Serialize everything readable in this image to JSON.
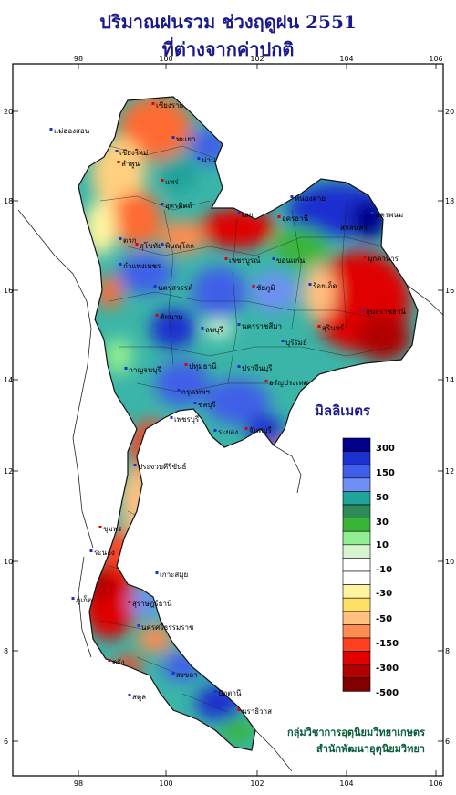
{
  "title": {
    "line1": "ปริมาณฝนรวม ช่วงฤดูฝน 2551",
    "line2": "ที่ต่างจากค่าปกติ"
  },
  "axes": {
    "lon_ticks": [
      "98",
      "100",
      "102",
      "104",
      "106"
    ],
    "lat_ticks": [
      "20",
      "18",
      "16",
      "14",
      "12",
      "10",
      "8",
      "6"
    ]
  },
  "legend": {
    "title": "มิลลิเมตร",
    "colors": [
      "#00008b",
      "#1c2fcf",
      "#3f5fe8",
      "#6f8ff5",
      "#1fa39a",
      "#2e8b57",
      "#3ab53a",
      "#90ee90",
      "#d8f5d0",
      "#ffffff",
      "#ffffff",
      "#fff5a0",
      "#ffe066",
      "#ffc080",
      "#ff8c50",
      "#ff4020",
      "#e00000",
      "#b00000",
      "#800000"
    ],
    "labels": [
      "300",
      "150",
      "50",
      "30",
      "10",
      "-10",
      "-30",
      "-50",
      "-150",
      "-300",
      "-500"
    ]
  },
  "places": [
    {
      "name": "เชียงราย"
    },
    {
      "name": "เชียงใหม่"
    },
    {
      "name": "แม่ฮ่องสอน"
    },
    {
      "name": "ลำพูน"
    },
    {
      "name": "พะเยา"
    },
    {
      "name": "น่าน"
    },
    {
      "name": "แพร่"
    },
    {
      "name": "อุตรดิตถ์"
    },
    {
      "name": "หนองคาย"
    },
    {
      "name": "อุดรธานี"
    },
    {
      "name": "สกลนคร"
    },
    {
      "name": "นครพนม"
    },
    {
      "name": "มุกดาหาร"
    },
    {
      "name": "เลย"
    },
    {
      "name": "ตาก"
    },
    {
      "name": "สุโขทัย"
    },
    {
      "name": "พิษณุโลก"
    },
    {
      "name": "กำแพงเพชร"
    },
    {
      "name": "เพชรบูรณ์"
    },
    {
      "name": "ขอนแก่น"
    },
    {
      "name": "นครสวรรค์"
    },
    {
      "name": "ชัยภูมิ"
    },
    {
      "name": "ร้อยเอ็ด"
    },
    {
      "name": "อุบลราชธานี"
    },
    {
      "name": "สุรินทร์"
    },
    {
      "name": "ลพบุรี"
    },
    {
      "name": "นครราชสีมา"
    },
    {
      "name": "ชัยนาท"
    },
    {
      "name": "บุรีรัมย์"
    },
    {
      "name": "กาญจนบุรี"
    },
    {
      "name": "ปทุมธานี"
    },
    {
      "name": "กรุงเทพฯ"
    },
    {
      "name": "ปราจีนบุรี"
    },
    {
      "name": "อรัญประเทศ"
    },
    {
      "name": "ชลบุรี"
    },
    {
      "name": "ระยอง"
    },
    {
      "name": "จันทบุรี"
    },
    {
      "name": "เพชรบุรี"
    },
    {
      "name": "ประจวบคีรีขันธ์"
    },
    {
      "name": "ชุมพร"
    },
    {
      "name": "ระนอง"
    },
    {
      "name": "เกาะสมุย"
    },
    {
      "name": "สุราษฎร์ธานี"
    },
    {
      "name": "ภูเก็ต"
    },
    {
      "name": "นครศรีธรรมราช"
    },
    {
      "name": "ตรัง"
    },
    {
      "name": "สงขลา"
    },
    {
      "name": "ปัตตานี"
    },
    {
      "name": "นราธิวาส"
    },
    {
      "name": "สตูล"
    }
  ],
  "credit": {
    "line1": "กลุ่มวิชาการอุตุนิยมวิทยาเกษตร",
    "line2": "สำนักพัฒนาอุตุนิยมวิทยา"
  }
}
